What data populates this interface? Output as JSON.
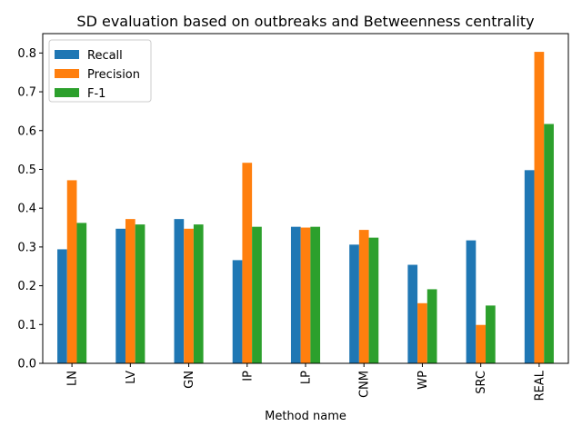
{
  "chart_data": {
    "type": "bar",
    "title": "SD evaluation based on outbreaks and Betweenness centrality",
    "xlabel": "Method name",
    "ylabel": "",
    "ylim": [
      0,
      0.85
    ],
    "yticks": [
      0.0,
      0.1,
      0.2,
      0.3,
      0.4,
      0.5,
      0.6,
      0.7,
      0.8
    ],
    "ytick_labels": [
      "0.0",
      "0.1",
      "0.2",
      "0.3",
      "0.4",
      "0.5",
      "0.6",
      "0.7",
      "0.8"
    ],
    "grid": false,
    "legend_position": "top-left",
    "categories": [
      "LN",
      "LV",
      "GN",
      "IP",
      "LP",
      "CNM",
      "WP",
      "SRC",
      "REAL"
    ],
    "series": [
      {
        "name": "Recall",
        "color": "#1f77b4",
        "values": [
          0.294,
          0.347,
          0.372,
          0.266,
          0.352,
          0.306,
          0.254,
          0.317,
          0.498
        ]
      },
      {
        "name": "Precision",
        "color": "#ff7f0e",
        "values": [
          0.472,
          0.372,
          0.347,
          0.517,
          0.35,
          0.344,
          0.155,
          0.099,
          0.803
        ]
      },
      {
        "name": "F-1",
        "color": "#2ca02c",
        "values": [
          0.362,
          0.358,
          0.358,
          0.352,
          0.352,
          0.324,
          0.191,
          0.149,
          0.617
        ]
      }
    ]
  }
}
